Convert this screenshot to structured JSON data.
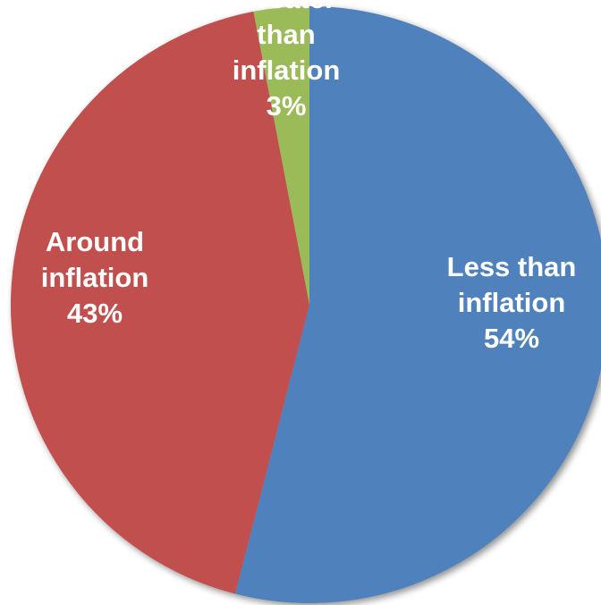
{
  "chart_data": {
    "type": "pie",
    "slices": [
      {
        "label_lines": [
          "Less than",
          "inflation"
        ],
        "percent_label": "54%",
        "value": 54,
        "color": "#4f81bd"
      },
      {
        "label_lines": [
          "Around",
          "inflation"
        ],
        "percent_label": "43%",
        "value": 43,
        "color": "#c0504d"
      },
      {
        "label_lines": [
          "Greater",
          "than",
          "inflation"
        ],
        "percent_label": "3%",
        "value": 3,
        "color": "#9bbb59"
      }
    ],
    "start_angle_deg": 0,
    "direction": "clockwise",
    "legend": "none",
    "data_labels": "inside"
  }
}
